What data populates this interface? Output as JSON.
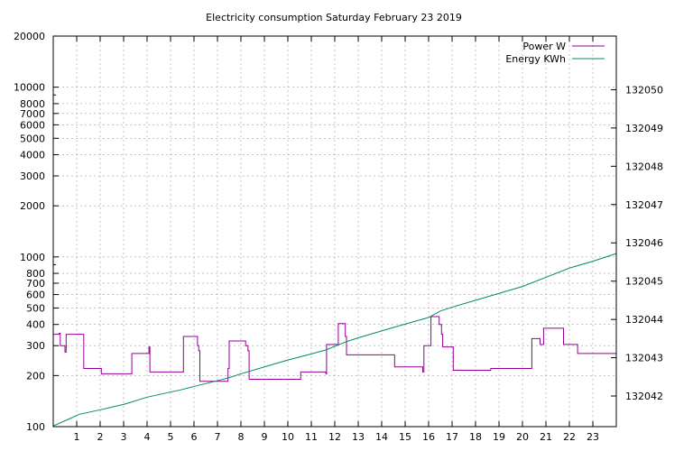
{
  "chart_data": {
    "type": "line",
    "title": "Electricity consumption Saturday February 23 2019",
    "xlabel": "",
    "ylabel": "",
    "y2label": "",
    "xlim": [
      0,
      24
    ],
    "ylim": [
      100,
      20000
    ],
    "yscale": "log",
    "y2lim": [
      132041.2,
      132051.4
    ],
    "grid": true,
    "legend_position": "top-right",
    "x_ticks": [
      "1",
      "2",
      "3",
      "4",
      "5",
      "6",
      "7",
      "8",
      "9",
      "10",
      "11",
      "12",
      "13",
      "14",
      "15",
      "16",
      "17",
      "18",
      "19",
      "20",
      "21",
      "22",
      "23"
    ],
    "y_ticks": [
      "100",
      "200",
      "300",
      "400",
      "500",
      "600",
      "700",
      "800",
      "1000",
      "2000",
      "3000",
      "4000",
      "5000",
      "6000",
      "7000",
      "8000",
      "10000",
      "20000"
    ],
    "y2_ticks": [
      "132042",
      "132043",
      "132044",
      "132045",
      "132046",
      "132047",
      "132048",
      "132049",
      "132050"
    ],
    "series": [
      {
        "name": "Power W",
        "color": "#940094",
        "axis": "left",
        "step": true,
        "points": [
          [
            0.0,
            350
          ],
          [
            0.25,
            355
          ],
          [
            0.3,
            300
          ],
          [
            0.45,
            300
          ],
          [
            0.5,
            275
          ],
          [
            0.55,
            350
          ],
          [
            1.25,
            350
          ],
          [
            1.3,
            220
          ],
          [
            2.0,
            220
          ],
          [
            2.05,
            205
          ],
          [
            3.3,
            205
          ],
          [
            3.35,
            270
          ],
          [
            4.05,
            270
          ],
          [
            4.08,
            295
          ],
          [
            4.12,
            210
          ],
          [
            5.5,
            210
          ],
          [
            5.55,
            340
          ],
          [
            6.1,
            340
          ],
          [
            6.15,
            300
          ],
          [
            6.2,
            280
          ],
          [
            6.25,
            185
          ],
          [
            7.4,
            185
          ],
          [
            7.45,
            220
          ],
          [
            7.5,
            320
          ],
          [
            8.15,
            320
          ],
          [
            8.2,
            300
          ],
          [
            8.3,
            280
          ],
          [
            8.35,
            190
          ],
          [
            10.5,
            190
          ],
          [
            10.55,
            210
          ],
          [
            11.6,
            210
          ],
          [
            11.62,
            205
          ],
          [
            11.65,
            305
          ],
          [
            12.1,
            305
          ],
          [
            12.15,
            405
          ],
          [
            12.4,
            405
          ],
          [
            12.45,
            340
          ],
          [
            12.5,
            265
          ],
          [
            14.5,
            265
          ],
          [
            14.55,
            225
          ],
          [
            15.7,
            225
          ],
          [
            15.75,
            210
          ],
          [
            15.8,
            300
          ],
          [
            16.05,
            300
          ],
          [
            16.1,
            445
          ],
          [
            16.4,
            445
          ],
          [
            16.45,
            400
          ],
          [
            16.55,
            350
          ],
          [
            16.6,
            295
          ],
          [
            17.0,
            295
          ],
          [
            17.05,
            215
          ],
          [
            18.6,
            215
          ],
          [
            18.65,
            220
          ],
          [
            20.35,
            220
          ],
          [
            20.4,
            330
          ],
          [
            20.7,
            330
          ],
          [
            20.75,
            305
          ],
          [
            20.85,
            305
          ],
          [
            20.9,
            380
          ],
          [
            21.7,
            380
          ],
          [
            21.75,
            305
          ],
          [
            22.3,
            305
          ],
          [
            22.35,
            270
          ],
          [
            24.0,
            270
          ]
        ]
      },
      {
        "name": "Energy KWh",
        "color": "#008b6b",
        "axis": "right",
        "step": false,
        "points": [
          [
            0.0,
            132041.22
          ],
          [
            0.6,
            132041.38
          ],
          [
            1.1,
            132041.52
          ],
          [
            2.0,
            132041.64
          ],
          [
            3.0,
            132041.78
          ],
          [
            4.0,
            132041.97
          ],
          [
            5.5,
            132042.17
          ],
          [
            6.0,
            132042.25
          ],
          [
            7.0,
            132042.4
          ],
          [
            7.5,
            132042.48
          ],
          [
            8.0,
            132042.58
          ],
          [
            9.0,
            132042.76
          ],
          [
            10.0,
            132042.94
          ],
          [
            11.0,
            132043.1
          ],
          [
            11.6,
            132043.2
          ],
          [
            12.5,
            132043.42
          ],
          [
            13.0,
            132043.52
          ],
          [
            14.0,
            132043.7
          ],
          [
            15.0,
            132043.88
          ],
          [
            16.0,
            132044.05
          ],
          [
            16.5,
            132044.22
          ],
          [
            17.0,
            132044.32
          ],
          [
            18.0,
            132044.5
          ],
          [
            19.0,
            132044.68
          ],
          [
            20.0,
            132044.86
          ],
          [
            21.0,
            132045.1
          ],
          [
            22.0,
            132045.34
          ],
          [
            23.0,
            132045.52
          ],
          [
            24.0,
            132045.72
          ]
        ]
      }
    ]
  }
}
